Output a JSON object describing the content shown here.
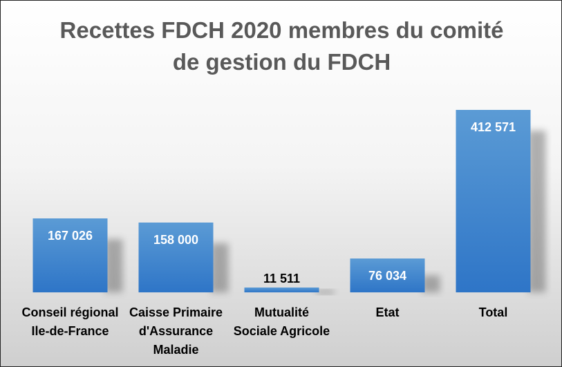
{
  "chart_data": {
    "type": "bar",
    "title": "Recettes FDCH 2020 membres du comité de gestion du FDCH",
    "title_lines": [
      "Recettes FDCH 2020 membres du comité",
      "de gestion du FDCH"
    ],
    "categories": [
      [
        "Conseil régional",
        "Ile-de-France"
      ],
      [
        "Caisse Primaire",
        "d'Assurance",
        "Maladie"
      ],
      [
        "Mutualité",
        "Sociale Agricole"
      ],
      [
        "Etat"
      ],
      [
        "Total"
      ]
    ],
    "values": [
      167026,
      158000,
      11511,
      76034,
      412571
    ],
    "data_labels": [
      "167 026",
      "158 000",
      "11 511",
      "76 034",
      "412 571"
    ],
    "xlabel": "",
    "ylabel": "",
    "ylim": [
      0,
      412571
    ],
    "grid": false,
    "legend": "none",
    "bar_color_top": "#5b9bd5",
    "bar_color_bottom": "#2e75c7"
  }
}
